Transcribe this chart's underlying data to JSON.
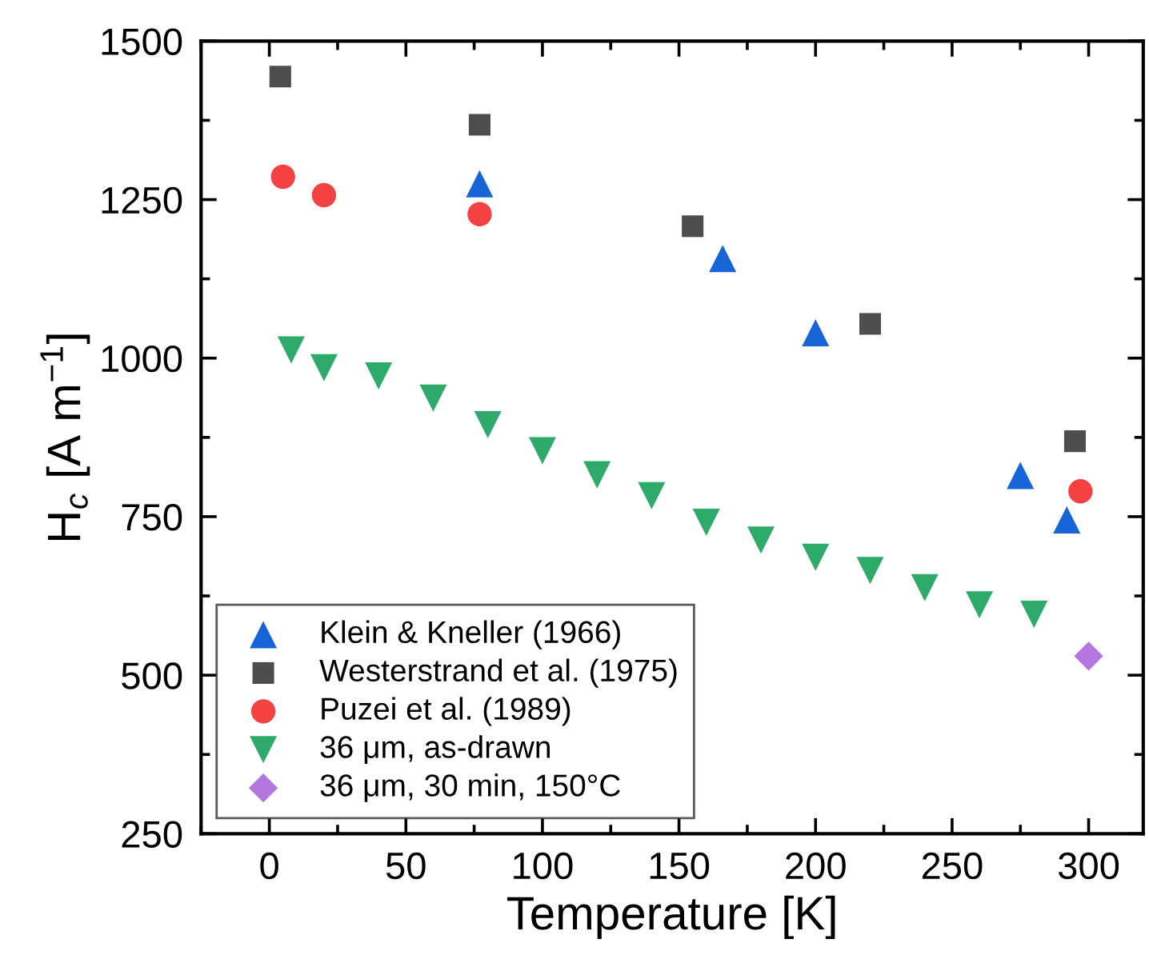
{
  "chart_data": {
    "type": "scatter",
    "xlabel": "Temperature [K]",
    "ylabel": "H$_{c}$ [A m$^{−1}$]",
    "xlim": [
      -25,
      320
    ],
    "xticks": [
      0,
      50,
      100,
      150,
      200,
      250,
      300
    ],
    "ylim": [
      250,
      1500
    ],
    "yticks": [
      250,
      500,
      750,
      1000,
      1250,
      1500
    ],
    "grid": false,
    "legend": "bottom left",
    "series": [
      {
        "name": "Klein & Kneller (1966)",
        "color": "#1764d8",
        "marker": "triangle",
        "x": [
          77,
          166,
          200,
          275,
          292
        ],
        "values": [
          1275,
          1157,
          1040,
          815,
          745
        ]
      },
      {
        "name": "Westerstrand et al. (1975)",
        "color": "#4d4d4d",
        "marker": "square",
        "x": [
          4,
          77,
          155,
          220,
          295
        ],
        "values": [
          1444,
          1368,
          1208,
          1054,
          869
        ]
      },
      {
        "name": "Puzei et al. (1989)",
        "color": "#f44242",
        "marker": "circle",
        "x": [
          5,
          20,
          77,
          297
        ],
        "values": [
          1286,
          1257,
          1227,
          790
        ]
      },
      {
        "name": "36 μm, as-drawn",
        "color": "#2eaa6a",
        "marker": "triangle_down",
        "x": [
          8,
          20,
          40,
          60,
          80,
          100,
          120,
          140,
          160,
          180,
          200,
          220,
          240,
          260,
          280
        ],
        "values": [
          1013,
          985,
          972,
          937,
          895,
          854,
          816,
          783,
          741,
          713,
          686,
          665,
          638,
          611,
          596
        ]
      },
      {
        "name": "36 μm, 30 min, 150°C",
        "color": "#b576e0",
        "marker": "diamond",
        "x": [
          300
        ],
        "values": [
          530
        ]
      }
    ]
  }
}
